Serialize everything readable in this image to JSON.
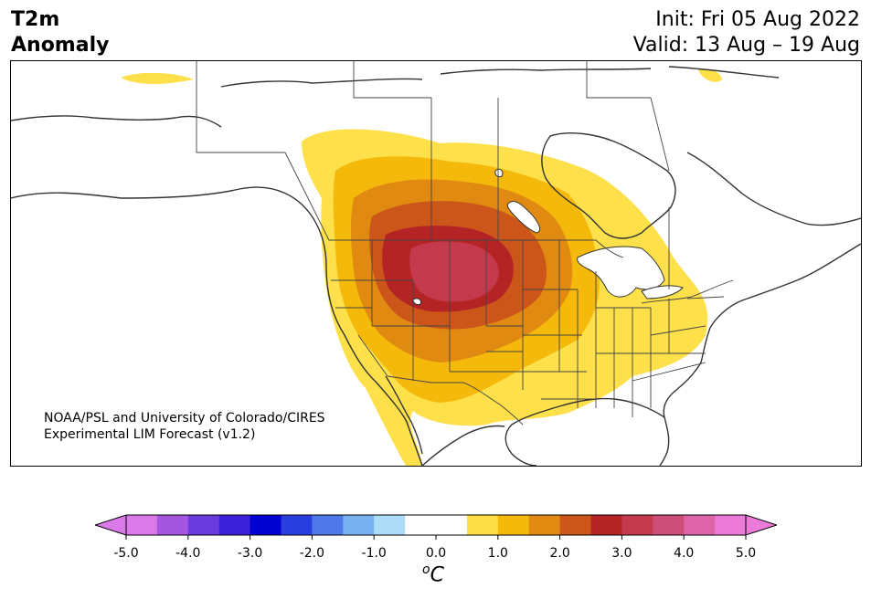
{
  "header": {
    "title_line1": "T2m",
    "title_line2": "Anomaly",
    "init": "Init: Fri 05 Aug 2022",
    "valid": "Valid: 13 Aug – 19 Aug"
  },
  "credit": {
    "line1": "NOAA/PSL and University of Colorado/CIRES",
    "line2": "Experimental LIM Forecast (v1.2)"
  },
  "colorbar": {
    "unit_sup": "o",
    "unit": "C",
    "tick_labels": [
      "-5.0",
      "-4.0",
      "-3.0",
      "-2.0",
      "-1.0",
      "0.0",
      "1.0",
      "2.0",
      "3.0",
      "4.0",
      "5.0"
    ],
    "colors": [
      "#d97ae8",
      "#a456e0",
      "#6a3ce0",
      "#3b22d8",
      "#0000d0",
      "#2a3ee0",
      "#4f78e8",
      "#78b2f0",
      "#acdcf8",
      "#ffffff",
      "#ffffff",
      "#fddf47",
      "#f4b90a",
      "#e08a12",
      "#cc561a",
      "#b42424",
      "#c43a4c",
      "#cc4e78",
      "#de64a8",
      "#ec7ad8"
    ],
    "over_color": "#ec7ad8",
    "under_color": "#d97ae8"
  },
  "anomaly_colors": {
    "level1": "#fde04a",
    "level2": "#f4b90a",
    "level3": "#e08a12",
    "level4": "#cc561a",
    "level5": "#b42424",
    "level6": "#c43a4c"
  }
}
